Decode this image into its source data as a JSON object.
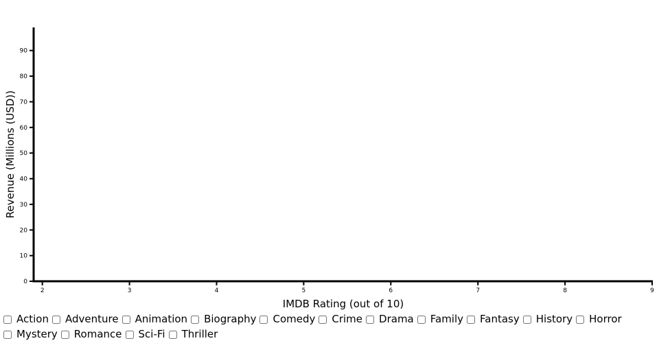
{
  "chart_data": {
    "type": "scatter",
    "title": "",
    "xlabel": "IMDB Rating (out of 10)",
    "ylabel": "Revenue (Millions (USD))",
    "xlim": [
      1.9,
      9
    ],
    "ylim": [
      0,
      99
    ],
    "xticks": [
      2,
      3,
      4,
      5,
      6,
      7,
      8,
      9
    ],
    "yticks": [
      0,
      10,
      20,
      30,
      40,
      50,
      60,
      70,
      80,
      90
    ],
    "grid": false,
    "series": [],
    "points": []
  },
  "filters": {
    "genres": [
      "Action",
      "Adventure",
      "Animation",
      "Biography",
      "Comedy",
      "Crime",
      "Drama",
      "Family",
      "Fantasy",
      "History",
      "Horror",
      "Mystery",
      "Romance",
      "Sci-Fi",
      "Thriller"
    ]
  }
}
